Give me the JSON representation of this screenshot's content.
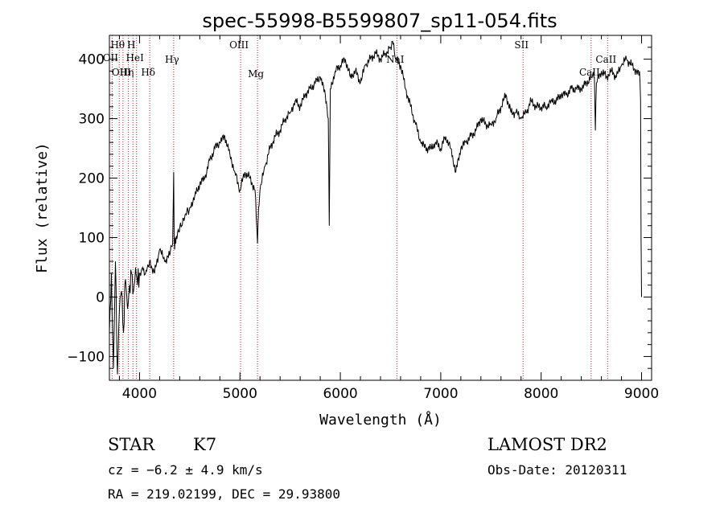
{
  "chart_data": {
    "type": "line",
    "title": "spec-55998-B5599807_sp11-054.fits",
    "xlabel": "Wavelength (Å)",
    "ylabel": "Flux (relative)",
    "xlim": [
      3700,
      9100
    ],
    "ylim": [
      -140,
      440
    ],
    "xticks": [
      4000,
      5000,
      6000,
      7000,
      8000,
      9000
    ],
    "yticks": [
      -100,
      0,
      100,
      200,
      300,
      400
    ],
    "series": [
      {
        "color": "#000000",
        "x": [
          3700,
          3720,
          3740,
          3760,
          3780,
          3800,
          3820,
          3840,
          3860,
          3880,
          3900,
          3920,
          3940,
          3960,
          3980,
          4000,
          4030,
          4060,
          4100,
          4150,
          4200,
          4250,
          4300,
          4330,
          4340,
          4345,
          4350,
          4355,
          4360,
          4380,
          4420,
          4460,
          4500,
          4550,
          4600,
          4650,
          4700,
          4750,
          4800,
          4850,
          4900,
          4950,
          5000,
          5050,
          5100,
          5150,
          5175,
          5185,
          5200,
          5250,
          5300,
          5350,
          5400,
          5450,
          5500,
          5550,
          5600,
          5650,
          5700,
          5750,
          5800,
          5850,
          5880,
          5890,
          5900,
          5950,
          6000,
          6050,
          6100,
          6150,
          6200,
          6250,
          6300,
          6350,
          6400,
          6450,
          6500,
          6520,
          6550,
          6600,
          6650,
          6700,
          6750,
          6800,
          6850,
          6900,
          6950,
          7000,
          7050,
          7100,
          7150,
          7200,
          7250,
          7300,
          7350,
          7400,
          7450,
          7500,
          7550,
          7600,
          7650,
          7700,
          7750,
          7800,
          7850,
          7900,
          7950,
          8000,
          8050,
          8100,
          8150,
          8200,
          8250,
          8300,
          8350,
          8400,
          8450,
          8500,
          8530,
          8540,
          8550,
          8600,
          8650,
          8700,
          8750,
          8800,
          8850,
          8900,
          8950,
          8980,
          8990,
          8995,
          9000
        ],
        "y": [
          -60,
          40,
          -120,
          60,
          -130,
          -20,
          10,
          -60,
          30,
          -20,
          20,
          40,
          10,
          50,
          20,
          40,
          50,
          40,
          60,
          40,
          80,
          60,
          70,
          90,
          210,
          100,
          80,
          100,
          90,
          110,
          120,
          140,
          150,
          170,
          190,
          200,
          230,
          250,
          260,
          270,
          240,
          210,
          180,
          210,
          200,
          180,
          90,
          150,
          180,
          220,
          250,
          270,
          280,
          300,
          310,
          330,
          320,
          340,
          350,
          360,
          370,
          340,
          300,
          120,
          350,
          380,
          390,
          400,
          370,
          380,
          360,
          390,
          400,
          410,
          400,
          410,
          420,
          430,
          400,
          390,
          350,
          320,
          290,
          260,
          250,
          250,
          260,
          250,
          270,
          250,
          210,
          250,
          260,
          270,
          280,
          300,
          290,
          290,
          300,
          320,
          340,
          310,
          310,
          300,
          310,
          330,
          320,
          320,
          320,
          330,
          330,
          340,
          340,
          350,
          350,
          350,
          360,
          370,
          370,
          280,
          360,
          380,
          370,
          380,
          370,
          390,
          400,
          390,
          380,
          380,
          330,
          100,
          0
        ]
      }
    ],
    "lines": [
      {
        "label": "Hθ",
        "x": 3798
      },
      {
        "label": "OII",
        "x": 3727
      },
      {
        "label": "OIII",
        "x": 3835
      },
      {
        "label": "Hη",
        "x": 3889
      },
      {
        "label": "H",
        "x": 3934
      },
      {
        "label": "HeI",
        "x": 3970
      },
      {
        "label": "Hδ",
        "x": 4102
      },
      {
        "label": "Hγ",
        "x": 4340
      },
      {
        "label": "OIII",
        "x": 5007
      },
      {
        "label": "Mg",
        "x": 5175
      },
      {
        "label": "NaI",
        "x": 6563
      },
      {
        "label": "SII",
        "x": 7820
      },
      {
        "label": "CaII",
        "x": 8498
      },
      {
        "label": "CaII",
        "x": 8662
      }
    ]
  },
  "footer": {
    "object": "STAR",
    "subclass": "K7",
    "survey": "LAMOST DR2",
    "cz": "cz = −6.2 ± 4.9 km/s",
    "obsdate": "Obs-Date: 20120311",
    "radec": "RA = 219.02199, DEC =  29.93800"
  }
}
